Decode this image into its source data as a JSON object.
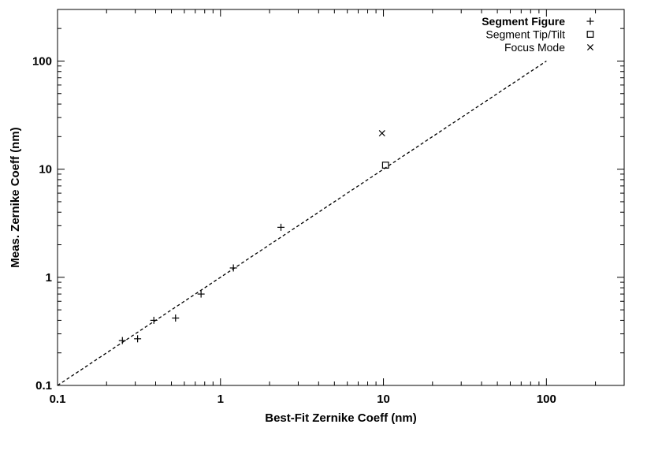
{
  "chart_data": {
    "type": "scatter",
    "xlabel": "Best-Fit Zernike Coeff (nm)",
    "ylabel": "Meas. Zernike Coeff (nm)",
    "xscale": "log",
    "yscale": "log",
    "xlim": [
      0.1,
      300
    ],
    "ylim": [
      0.1,
      300
    ],
    "xticks": [
      0.1,
      1,
      10,
      100
    ],
    "xtick_labels": [
      "0.1",
      "1",
      "10",
      "100"
    ],
    "yticks": [
      0.1,
      1,
      10,
      100
    ],
    "ytick_labels": [
      "0.1",
      "1",
      "10",
      "100"
    ],
    "grid": false,
    "legend_position": "top-right",
    "series": [
      {
        "name": "Segment Figure",
        "marker": "plus",
        "points": [
          {
            "x": 0.25,
            "y": 0.26
          },
          {
            "x": 0.31,
            "y": 0.27
          },
          {
            "x": 0.39,
            "y": 0.4
          },
          {
            "x": 0.53,
            "y": 0.42
          },
          {
            "x": 0.76,
            "y": 0.7
          },
          {
            "x": 1.2,
            "y": 1.22
          },
          {
            "x": 2.35,
            "y": 2.9
          }
        ]
      },
      {
        "name": "Segment Tip/Tilt",
        "marker": "square",
        "points": [
          {
            "x": 10.3,
            "y": 10.9
          }
        ]
      },
      {
        "name": "Focus Mode",
        "marker": "cross",
        "points": [
          {
            "x": 9.8,
            "y": 21.5
          }
        ]
      }
    ],
    "reference_line": {
      "style": "dashed",
      "from": {
        "x": 0.1,
        "y": 0.1
      },
      "to": {
        "x": 100,
        "y": 100
      }
    }
  }
}
